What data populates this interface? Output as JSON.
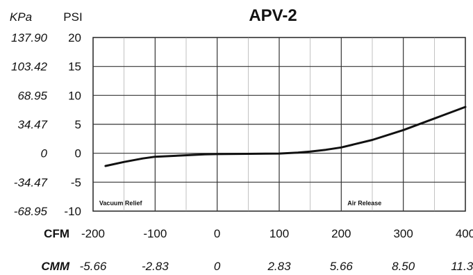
{
  "chart_data": {
    "type": "line",
    "title": "APV-2",
    "y_primary_label": "PSI",
    "y_secondary_label": "KPa",
    "x_primary_label": "CFM",
    "x_secondary_label": "CMM",
    "xlim": [
      -200,
      400
    ],
    "ylim": [
      -10,
      20
    ],
    "x_ticks": [
      "-200",
      "-100",
      "0",
      "100",
      "200",
      "300",
      "400"
    ],
    "y_ticks": [
      "20",
      "15",
      "10",
      "5",
      "0",
      "-5",
      "-10"
    ],
    "y_secondary_ticks": [
      "137.90",
      "103.42",
      "68.95",
      "34.47",
      "0",
      "-34.47",
      "-68.95"
    ],
    "x_secondary_ticks": [
      "-5.66",
      "-2.83",
      "0",
      "2.83",
      "5.66",
      "8.50",
      "11.33"
    ],
    "grid": true,
    "annotations": [
      {
        "text": "Vacuum Relief",
        "x": -190,
        "y": -9
      },
      {
        "text": "Air Release",
        "x": 210,
        "y": -9
      }
    ],
    "series": [
      {
        "x": [
          -180,
          -150,
          -120,
          -100,
          -60,
          -20,
          0,
          50,
          100,
          130,
          150,
          175,
          200,
          250,
          300,
          350,
          400
        ],
        "y": [
          -2.2,
          -1.5,
          -0.9,
          -0.6,
          -0.4,
          -0.2,
          -0.15,
          -0.1,
          -0.05,
          0.1,
          0.3,
          0.6,
          1.0,
          2.3,
          4.0,
          6.0,
          8.0
        ]
      }
    ]
  }
}
